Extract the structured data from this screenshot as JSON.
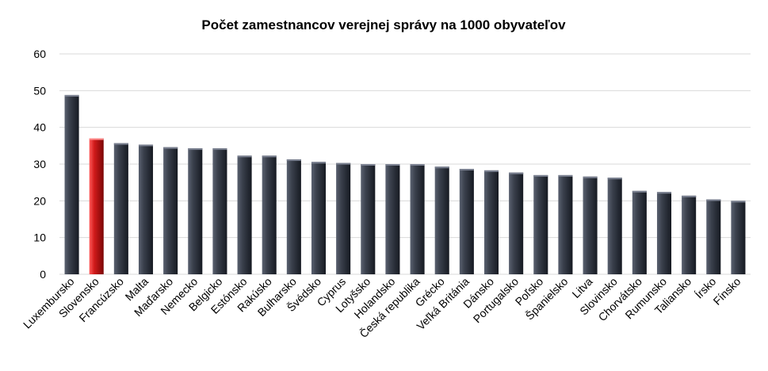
{
  "chart_data": {
    "type": "bar",
    "title": "Počet zamestnancov verejnej správy na 1000  obyvateľov",
    "xlabel": "",
    "ylabel": "",
    "ylim": [
      0,
      60
    ],
    "yticks": [
      0,
      10,
      20,
      30,
      40,
      50,
      60
    ],
    "grid": true,
    "legend": "none",
    "categories": [
      "Luxembursko",
      "Slovensko",
      "Francúzsko",
      "Malta",
      "Maďarsko",
      "Nemecko",
      "Belgicko",
      "Estónsko",
      "Rakúsko",
      "Bulharsko",
      "Švédsko",
      "Cyprus",
      "Lotyšsko",
      "Holandsko",
      "Česká republika",
      "Grécko",
      "Veľká Británia",
      "Dánsko",
      "Portugalsko",
      "Poľsko",
      "Španielsko",
      "Litva",
      "Slovinsko",
      "Chorvátsko",
      "Rumunsko",
      "Taliansko",
      "Írsko",
      "Fínsko"
    ],
    "values": [
      48.8,
      37.0,
      35.7,
      35.3,
      34.6,
      34.3,
      34.3,
      32.3,
      32.3,
      31.3,
      30.6,
      30.3,
      30.0,
      30.0,
      30.0,
      29.3,
      28.7,
      28.3,
      27.7,
      27.0,
      27.0,
      26.6,
      26.3,
      22.7,
      22.4,
      21.4,
      20.4,
      20.0
    ],
    "highlight_index": 1,
    "colors": {
      "bar": "#2f3440",
      "highlight": "#d11a1a",
      "grid": "#d9d9d9"
    }
  }
}
